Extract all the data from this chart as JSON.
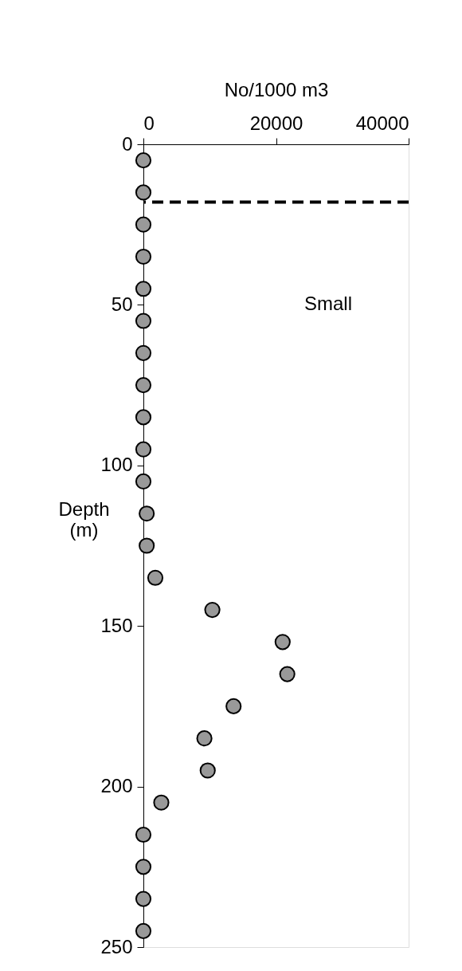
{
  "chart_data": {
    "type": "scatter",
    "xlabel": "No/1000 m3",
    "ylabel": "Depth\n(m)",
    "x": [
      0,
      0,
      0,
      0,
      0,
      0,
      0,
      0,
      0,
      0,
      0,
      500,
      500,
      1800,
      10400,
      21000,
      21700,
      13600,
      9200,
      9700,
      2700,
      0,
      0,
      0,
      0
    ],
    "series": [
      {
        "color": "#999999",
        "values": [
          5,
          15,
          25,
          35,
          45,
          55,
          65,
          75,
          85,
          95,
          105,
          115,
          125,
          135,
          145,
          155,
          165,
          175,
          185,
          195,
          205,
          215,
          225,
          235,
          245
        ]
      }
    ],
    "xlim": [
      0,
      40000
    ],
    "xticks": [
      0,
      20000,
      40000
    ],
    "ylim": [
      250,
      0
    ],
    "yticks": [
      0,
      50,
      100,
      150,
      200,
      250
    ],
    "ref_lines": [
      {
        "axis": "y",
        "value": 18,
        "color": "#000000",
        "line_style": "dashed"
      }
    ],
    "annotations": [
      "Small"
    ],
    "marker": "circle",
    "grid": false
  }
}
